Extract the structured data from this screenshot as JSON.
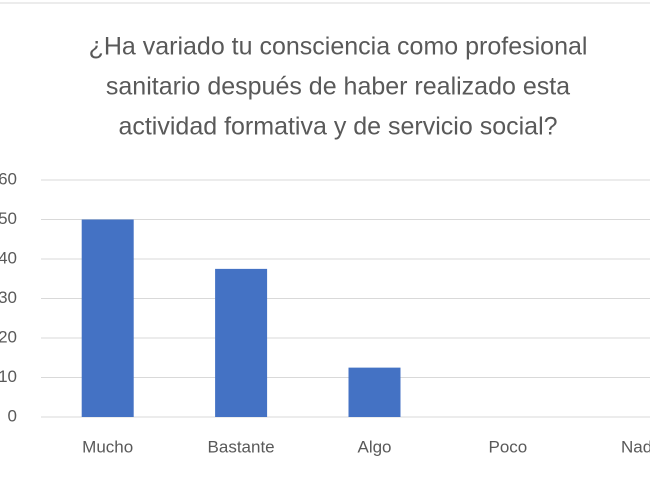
{
  "chart_data": {
    "type": "bar",
    "title": [
      "¿Ha variado tu consciencia como profesional",
      "sanitario después de haber realizado esta",
      "actividad formativa y de servicio social?"
    ],
    "categories": [
      "Mucho",
      "Bastante",
      "Algo",
      "Poco",
      "Nada"
    ],
    "values": [
      50,
      37.5,
      12.5,
      0,
      0
    ],
    "color": "#4472c4",
    "ylim": [
      0,
      60
    ],
    "yticks": [
      0,
      10,
      20,
      30,
      40,
      50,
      60
    ],
    "grid": true
  }
}
